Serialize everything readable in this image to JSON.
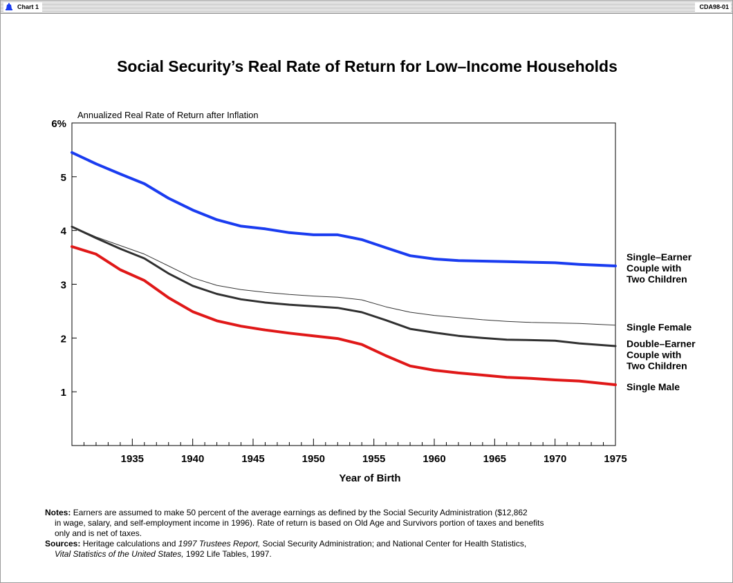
{
  "window": {
    "title": "Chart 1",
    "code": "CDA98-01"
  },
  "chart_data": {
    "type": "line",
    "title": "Social Security’s Real Rate of Return for Low–Income Households",
    "ylabel": "Annualized Real Rate of Return after Inflation",
    "xlabel": "Year of Birth",
    "xlim": [
      1930,
      1975
    ],
    "ylim": [
      0,
      6
    ],
    "x_ticks": [
      1935,
      1940,
      1945,
      1950,
      1955,
      1960,
      1965,
      1970,
      1975
    ],
    "x_tick_labels": [
      "1935",
      "1940",
      "1945",
      "1950",
      "1955",
      "1960",
      "1965",
      "1970",
      "1975"
    ],
    "y_ticks": [
      1,
      2,
      3,
      4,
      5,
      6
    ],
    "y_tick_labels": [
      "1",
      "2",
      "3",
      "4",
      "5",
      "6%"
    ],
    "grid": false,
    "legend": "right",
    "x": [
      1930,
      1932,
      1934,
      1936,
      1938,
      1940,
      1942,
      1944,
      1946,
      1948,
      1950,
      1952,
      1954,
      1956,
      1958,
      1960,
      1962,
      1964,
      1966,
      1968,
      1970,
      1972,
      1975
    ],
    "series": [
      {
        "name": "Single–Earner Couple with Two Children",
        "label_lines": [
          "Single–Earner",
          "Couple with",
          "Two Children"
        ],
        "color": "#1a3cf0",
        "width": 4,
        "values": [
          5.45,
          5.24,
          5.05,
          4.87,
          4.6,
          4.38,
          4.2,
          4.08,
          4.03,
          3.96,
          3.92,
          3.92,
          3.83,
          3.68,
          3.53,
          3.47,
          3.44,
          3.43,
          3.42,
          3.41,
          3.4,
          3.37,
          3.34
        ]
      },
      {
        "name": "Single Female",
        "label_lines": [
          "Single Female"
        ],
        "color": "#333333",
        "width": 1,
        "values": [
          4.08,
          3.88,
          3.72,
          3.56,
          3.34,
          3.12,
          2.98,
          2.9,
          2.85,
          2.81,
          2.78,
          2.76,
          2.71,
          2.58,
          2.48,
          2.42,
          2.38,
          2.34,
          2.31,
          2.29,
          2.28,
          2.27,
          2.24
        ]
      },
      {
        "name": "Double–Earner Couple with Two Children",
        "label_lines": [
          "Double–Earner",
          "Couple with",
          "Two Children"
        ],
        "color": "#303030",
        "width": 3,
        "values": [
          4.07,
          3.86,
          3.66,
          3.48,
          3.2,
          2.97,
          2.82,
          2.72,
          2.66,
          2.62,
          2.59,
          2.56,
          2.48,
          2.33,
          2.17,
          2.1,
          2.04,
          2.0,
          1.97,
          1.96,
          1.95,
          1.9,
          1.85
        ]
      },
      {
        "name": "Single Male",
        "label_lines": [
          "Single Male"
        ],
        "color": "#e01818",
        "width": 4,
        "values": [
          3.7,
          3.56,
          3.27,
          3.07,
          2.75,
          2.49,
          2.32,
          2.22,
          2.15,
          2.09,
          2.04,
          1.99,
          1.88,
          1.67,
          1.48,
          1.4,
          1.35,
          1.31,
          1.27,
          1.25,
          1.22,
          1.2,
          1.13
        ]
      }
    ]
  },
  "notes": {
    "notes_label": "Notes:",
    "notes_line1": "Earners are assumed to make 50 percent of the average earnings as defined by the Social Security Administration ($12,862",
    "notes_line2": "in wage, salary, and self-employment income in 1996). Rate of return is based on Old  Age and Survivors portion of taxes and benefits",
    "notes_line3": "only and is net of taxes.",
    "sources_label": "Sources:",
    "sources_line1_a": "Heritage calculations and ",
    "sources_line1_b": "1997 Trustees Report,",
    "sources_line1_c": " Social Security Administration; and National Center for Health Statistics,",
    "sources_line2_a": "Vital Statistics of the United States,",
    "sources_line2_b": " 1992 Life Tables, 1997."
  }
}
